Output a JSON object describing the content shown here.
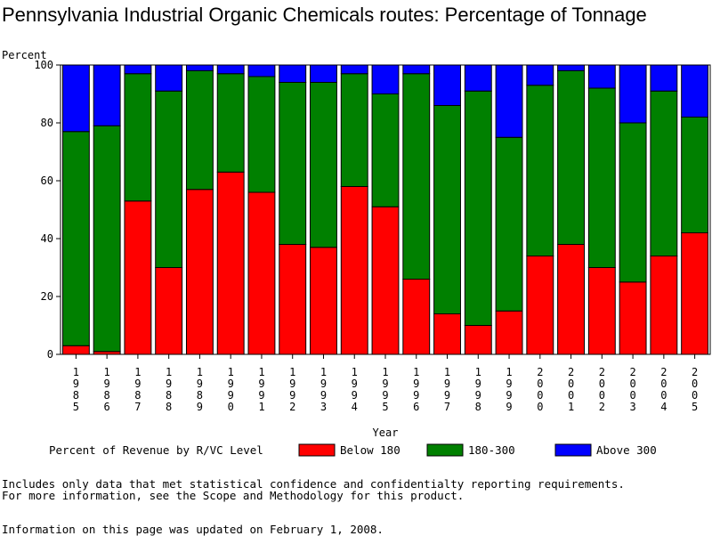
{
  "title": "Pennsylvania Industrial Organic Chemicals routes: Percentage of Tonnage",
  "footnotes": [
    "Includes only data that met statistical confidence and confidentialty reporting requirements.",
    "For more information, see the Scope and Methodology for this product.",
    "Information on this page was updated on February 1, 2008."
  ],
  "chart_data": {
    "type": "bar",
    "stacked": true,
    "title": "Pennsylvania Industrial Organic Chemicals routes: Percentage of Tonnage",
    "xlabel": "Year",
    "ylabel": "Percent",
    "ylim": [
      0,
      100
    ],
    "yticks": [
      0,
      20,
      40,
      60,
      80,
      100
    ],
    "legend_title": "Percent of Revenue by R/VC Level",
    "legend_position": "bottom",
    "categories": [
      "1985",
      "1986",
      "1987",
      "1988",
      "1989",
      "1990",
      "1991",
      "1992",
      "1993",
      "1994",
      "1995",
      "1996",
      "1997",
      "1998",
      "1999",
      "2000",
      "2001",
      "2002",
      "2003",
      "2004",
      "2005"
    ],
    "series": [
      {
        "name": "Below 180",
        "color": "#ff0000",
        "values": [
          3,
          1,
          53,
          30,
          57,
          63,
          56,
          38,
          37,
          58,
          51,
          26,
          14,
          10,
          15,
          34,
          38,
          30,
          25,
          34,
          42
        ]
      },
      {
        "name": "180-300",
        "color": "#008000",
        "values": [
          74,
          78,
          44,
          61,
          41,
          34,
          40,
          56,
          57,
          39,
          39,
          71,
          72,
          81,
          60,
          59,
          60,
          62,
          55,
          57,
          40
        ]
      },
      {
        "name": "Above 300",
        "color": "#0000ff",
        "values": [
          23,
          21,
          3,
          9,
          2,
          3,
          4,
          6,
          6,
          3,
          10,
          3,
          14,
          9,
          25,
          7,
          2,
          8,
          20,
          9,
          18
        ]
      }
    ]
  }
}
